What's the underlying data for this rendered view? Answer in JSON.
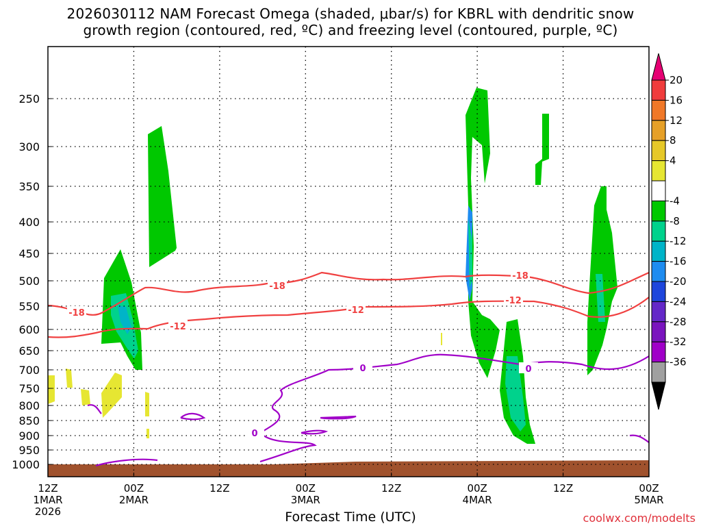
{
  "title_line1": "2026030112 NAM Forecast Omega (shaded, μbar/s) for KBRL with dendritic snow",
  "title_line2": "growth region (contoured, red, ºC) and freezing level (contoured, purple, ºC)",
  "credit": "coolwx.com/modelts",
  "chart_data": {
    "type": "heatmap",
    "xlabel": "Forecast Time (UTC)",
    "x_ticks": [
      {
        "l1": "12Z",
        "l2": "1MAR",
        "l3": "2026"
      },
      {
        "l1": "00Z",
        "l2": "2MAR",
        "l3": ""
      },
      {
        "l1": "12Z",
        "l2": "",
        "l3": ""
      },
      {
        "l1": "00Z",
        "l2": "3MAR",
        "l3": ""
      },
      {
        "l1": "12Z",
        "l2": "",
        "l3": ""
      },
      {
        "l1": "00Z",
        "l2": "4MAR",
        "l3": ""
      },
      {
        "l1": "12Z",
        "l2": "",
        "l3": ""
      },
      {
        "l1": "00Z",
        "l2": "5MAR",
        "l3": ""
      }
    ],
    "x_range_hours": [
      0,
      84
    ],
    "y_ticks": [
      250,
      300,
      350,
      400,
      450,
      500,
      550,
      600,
      650,
      700,
      750,
      800,
      850,
      900,
      950,
      1000
    ],
    "y_range_hpa": [
      200,
      1020
    ],
    "colorbar": {
      "labels": [
        "20",
        "16",
        "12",
        "8",
        "4",
        "-4",
        "-8",
        "-12",
        "-16",
        "-20",
        "-24",
        "-28",
        "-32",
        "-36"
      ],
      "colors": [
        "#e60073",
        "#f03c3c",
        "#f07828",
        "#e6a028",
        "#e6c828",
        "#e6e632",
        "#ffffff",
        "#00c800",
        "#00d28c",
        "#00b4c8",
        "#1e8cf0",
        "#1e46dc",
        "#6428c8",
        "#7a14be",
        "#a000c8",
        "#a0a0a0",
        "#000000"
      ]
    },
    "contour_labels": {
      "dgz_minus18": "-18",
      "dgz_minus12": "-12",
      "freezing": "0"
    },
    "grid": true
  }
}
